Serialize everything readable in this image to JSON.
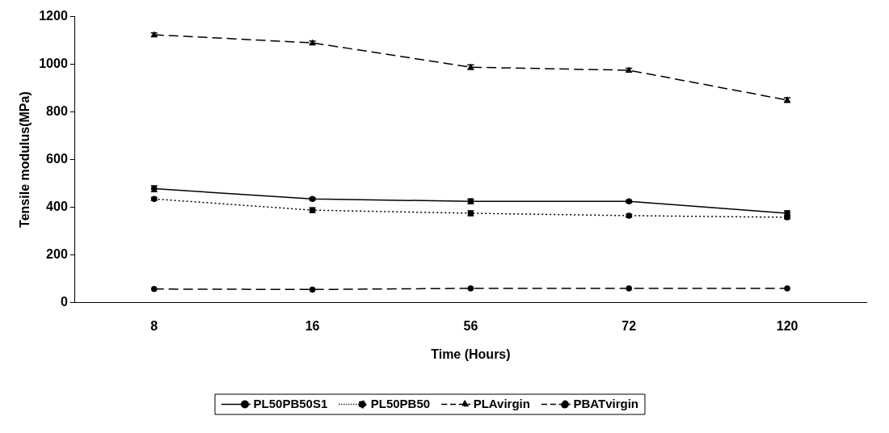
{
  "chart_data": {
    "type": "line",
    "xlabel": "Time (Hours)",
    "ylabel": "Tensile modulus(MPa)",
    "categories": [
      "8",
      "16",
      "56",
      "72",
      "120"
    ],
    "ylim": [
      0,
      1200
    ],
    "yticks": [
      0,
      200,
      400,
      600,
      800,
      1000,
      1200
    ],
    "grid": false,
    "legend": "bottom",
    "series": [
      {
        "name": "PL50PB50S1",
        "color": "#000000",
        "values": [
          478,
          435,
          425,
          425,
          375
        ],
        "errors": [
          12,
          5,
          10,
          5,
          10
        ],
        "marker": "circle",
        "line_style": "solid"
      },
      {
        "name": "PL50PB50",
        "color": "#000000",
        "values": [
          435,
          388,
          375,
          365,
          358
        ],
        "errors": [
          6,
          10,
          10,
          6,
          6
        ],
        "marker": "circle",
        "line_style": "dotted"
      },
      {
        "name": "PLAvirgin",
        "color": "#000000",
        "values": [
          1124,
          1090,
          988,
          975,
          850
        ],
        "errors": [
          8,
          8,
          10,
          8,
          10
        ],
        "marker": "triangle",
        "line_style": "dashed"
      },
      {
        "name": "PBATvirgin",
        "color": "#000000",
        "values": [
          57,
          55,
          60,
          60,
          60
        ],
        "marker": "circle",
        "line_style": "dashed"
      }
    ]
  }
}
